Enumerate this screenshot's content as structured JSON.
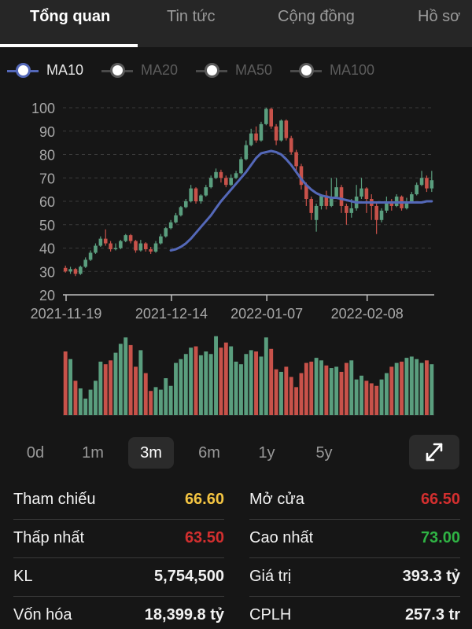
{
  "tabs": [
    {
      "label": "Tổng quan",
      "active": true
    },
    {
      "label": "Tin tức",
      "active": false
    },
    {
      "label": "Cộng đồng",
      "active": false
    },
    {
      "label": "Hồ sơ",
      "active": false
    }
  ],
  "legend": [
    {
      "label": "MA10",
      "active": true
    },
    {
      "label": "MA20",
      "active": false
    },
    {
      "label": "MA50",
      "active": false
    },
    {
      "label": "MA100",
      "active": false
    }
  ],
  "chart_data": {
    "type": "candlestick",
    "ylim": [
      20,
      100
    ],
    "y_ticks": [
      "100",
      "90",
      "80",
      "70",
      "60",
      "50",
      "40",
      "30",
      "20"
    ],
    "x_tick_labels": [
      "2021-11-19",
      "2021-12-14",
      "2022-01-07",
      "2022-02-08"
    ],
    "ma_series": {
      "name": "MA10",
      "color": "#5468b8"
    },
    "up_color": "#5a9e7e",
    "down_color": "#c8524a",
    "candles": [
      [
        31.5,
        30.0,
        32.5,
        29.5
      ],
      [
        30.0,
        31.0,
        32.0,
        29.0
      ],
      [
        31.0,
        29.0,
        31.5,
        28.0
      ],
      [
        29.0,
        32.0,
        32.5,
        28.5
      ],
      [
        32.0,
        35.0,
        36.0,
        31.5
      ],
      [
        35.0,
        38.0,
        39.0,
        34.5
      ],
      [
        38.0,
        41.0,
        42.0,
        37.5
      ],
      [
        41.0,
        44.0,
        45.0,
        40.5
      ],
      [
        44.0,
        42.0,
        48.0,
        41.0
      ],
      [
        42.0,
        39.5,
        43.0,
        38.5
      ],
      [
        39.5,
        40.0,
        42.0,
        39.0
      ],
      [
        40.0,
        43.0,
        43.5,
        39.5
      ],
      [
        43.0,
        45.5,
        46.0,
        42.5
      ],
      [
        45.5,
        43.0,
        46.0,
        42.0
      ],
      [
        43.0,
        39.0,
        43.5,
        38.0
      ],
      [
        39.0,
        42.0,
        43.5,
        38.5
      ],
      [
        42.0,
        39.5,
        42.5,
        38.5
      ],
      [
        39.5,
        38.5,
        40.5,
        37.5
      ],
      [
        38.5,
        42.0,
        43.0,
        38.0
      ],
      [
        42.0,
        45.0,
        46.0,
        41.5
      ],
      [
        45.0,
        48.5,
        49.0,
        44.5
      ],
      [
        48.5,
        51.0,
        52.0,
        48.0
      ],
      [
        51.0,
        54.0,
        55.0,
        50.5
      ],
      [
        54.0,
        57.5,
        58.0,
        53.5
      ],
      [
        57.5,
        60.0,
        61.0,
        57.0
      ],
      [
        60.0,
        65.5,
        67.0,
        59.5
      ],
      [
        65.5,
        60.0,
        66.0,
        59.0
      ],
      [
        60.0,
        62.5,
        63.0,
        59.0
      ],
      [
        62.5,
        66.0,
        67.0,
        62.0
      ],
      [
        66.0,
        70.0,
        71.0,
        65.5
      ],
      [
        70.0,
        72.5,
        74.0,
        69.5
      ],
      [
        72.5,
        70.0,
        73.5,
        68.0
      ],
      [
        70.0,
        67.0,
        71.0,
        66.0
      ],
      [
        67.0,
        70.0,
        71.5,
        66.5
      ],
      [
        70.0,
        72.0,
        73.0,
        69.5
      ],
      [
        72.0,
        78.0,
        79.0,
        71.5
      ],
      [
        78.0,
        84.0,
        86.0,
        77.5
      ],
      [
        84.0,
        89.0,
        91.0,
        83.5
      ],
      [
        89.0,
        86.0,
        92.0,
        85.0
      ],
      [
        86.0,
        93.0,
        94.0,
        85.5
      ],
      [
        93.0,
        99.5,
        100.0,
        92.5
      ],
      [
        99.5,
        92.0,
        100.0,
        91.0
      ],
      [
        92.0,
        86.0,
        93.0,
        84.0
      ],
      [
        86.0,
        94.5,
        95.0,
        85.5
      ],
      [
        94.5,
        87.0,
        95.0,
        86.0
      ],
      [
        87.0,
        81.0,
        88.0,
        80.0
      ],
      [
        81.0,
        75.0,
        82.0,
        73.0
      ],
      [
        75.0,
        67.0,
        76.0,
        65.0
      ],
      [
        67.0,
        61.0,
        68.0,
        58.0
      ],
      [
        61.0,
        55.0,
        62.0,
        52.0
      ],
      [
        52.0,
        58.0,
        59.0,
        47.0
      ],
      [
        58.0,
        62.5,
        63.0,
        56.5
      ],
      [
        62.5,
        58.0,
        64.5,
        56.5
      ],
      [
        58.0,
        62.0,
        70.0,
        57.5
      ],
      [
        62.0,
        66.0,
        70.0,
        61.5
      ],
      [
        66.0,
        58.0,
        67.0,
        55.0
      ],
      [
        58.0,
        55.0,
        59.0,
        50.0
      ],
      [
        55.0,
        57.0,
        61.0,
        53.0
      ],
      [
        57.0,
        62.0,
        67.0,
        56.0
      ],
      [
        62.0,
        65.5,
        70.0,
        61.0
      ],
      [
        65.5,
        61.0,
        66.0,
        55.0
      ],
      [
        61.0,
        58.0,
        63.0,
        52.0
      ],
      [
        58.0,
        52.0,
        59.0,
        46.0
      ],
      [
        52.0,
        56.0,
        57.0,
        51.0
      ],
      [
        56.0,
        60.0,
        62.0,
        55.0
      ],
      [
        60.0,
        58.0,
        61.0,
        56.0
      ],
      [
        58.0,
        62.0,
        63.0,
        57.5
      ],
      [
        62.0,
        57.0,
        62.5,
        56.0
      ],
      [
        57.0,
        60.0,
        61.5,
        56.5
      ],
      [
        60.0,
        63.0,
        64.0,
        59.5
      ],
      [
        63.0,
        67.0,
        68.0,
        62.5
      ],
      [
        67.0,
        70.0,
        73.0,
        66.5
      ],
      [
        70.0,
        65.5,
        71.0,
        64.0
      ],
      [
        65.5,
        69.0,
        73.0,
        64.0
      ]
    ],
    "ma10": [
      null,
      null,
      null,
      null,
      null,
      null,
      null,
      null,
      null,
      null,
      null,
      null,
      null,
      null,
      null,
      null,
      null,
      null,
      null,
      null,
      null,
      39.0,
      39.5,
      40.5,
      42.0,
      44.0,
      46.5,
      49.0,
      51.5,
      54.0,
      57.0,
      60.0,
      62.5,
      65.0,
      67.5,
      70.0,
      72.5,
      75.5,
      78.5,
      80.5,
      81.0,
      81.5,
      81.0,
      80.0,
      78.0,
      75.5,
      72.5,
      69.5,
      67.0,
      65.0,
      63.5,
      62.5,
      62.0,
      61.5,
      61.5,
      61.0,
      60.5,
      60.0,
      59.5,
      59.5,
      59.5,
      59.5,
      59.5,
      59.5,
      59.5,
      59.5,
      59.5,
      59.5,
      59.5,
      59.5,
      59.5,
      59.5,
      60.0,
      60.0
    ],
    "volume": [
      50,
      44,
      27,
      21,
      13,
      20,
      27,
      42,
      40,
      43,
      49,
      56,
      61,
      55,
      38,
      51,
      33,
      19,
      22,
      20,
      29,
      23,
      41,
      44,
      48,
      53,
      54,
      47,
      50,
      48,
      62,
      53,
      57,
      54,
      42,
      40,
      48,
      51,
      50,
      46,
      61,
      52,
      36,
      34,
      38,
      30,
      22,
      33,
      41,
      42,
      45,
      43,
      39,
      37,
      38,
      34,
      41,
      43,
      28,
      31,
      27,
      25,
      23,
      28,
      33,
      38,
      41,
      42,
      45,
      46,
      44,
      41,
      43,
      40
    ]
  },
  "ranges": [
    {
      "label": "0d",
      "active": false
    },
    {
      "label": "1m",
      "active": false
    },
    {
      "label": "3m",
      "active": true
    },
    {
      "label": "6m",
      "active": false
    },
    {
      "label": "1y",
      "active": false
    },
    {
      "label": "5y",
      "active": false
    }
  ],
  "stats_left": [
    {
      "label": "Tham chiếu",
      "value": "66.60",
      "color": "#f4c542"
    },
    {
      "label": "Thấp nhất",
      "value": "63.50",
      "color": "#d32f2f"
    },
    {
      "label": "KL",
      "value": "5,754,500",
      "color": "#f2f2f2"
    },
    {
      "label": "Vốn hóa",
      "value": "18,399.8 tỷ",
      "color": "#f2f2f2"
    }
  ],
  "stats_right": [
    {
      "label": "Mở cửa",
      "value": "66.50",
      "color": "#d32f2f"
    },
    {
      "label": "Cao nhất",
      "value": "73.00",
      "color": "#2fb344"
    },
    {
      "label": "Giá trị",
      "value": "393.3 tỷ",
      "color": "#f2f2f2"
    },
    {
      "label": "CPLH",
      "value": "257.3 tr",
      "color": "#f2f2f2"
    }
  ]
}
